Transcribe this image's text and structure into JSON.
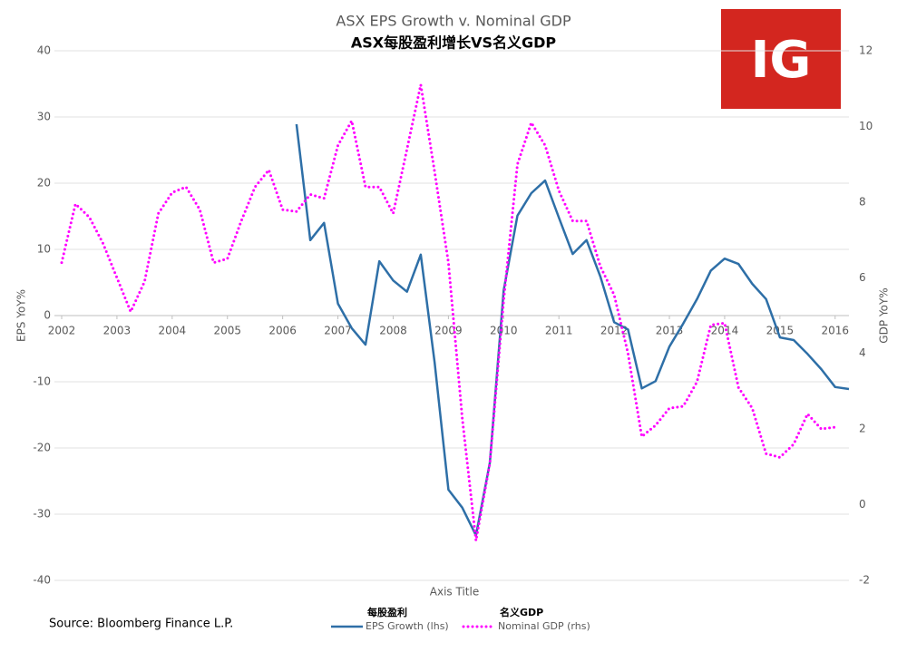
{
  "chart_data": {
    "type": "line",
    "title": "ASX EPS Growth v. Nominal GDP",
    "subtitle": "ASX每股盈利增长VS名义GDP",
    "logo": "IG",
    "source": "Source: Bloomberg Finance L.P.",
    "xlabel": "Axis Title",
    "ylabel": "EPS YoY%",
    "y2label": "GDP YoY%",
    "x": [
      2002,
      2002.25,
      2002.5,
      2002.75,
      2003,
      2003.25,
      2003.5,
      2003.75,
      2004,
      2004.25,
      2004.5,
      2004.75,
      2005,
      2005.25,
      2005.5,
      2005.75,
      2006,
      2006.25,
      2006.5,
      2006.75,
      2007,
      2007.25,
      2007.5,
      2007.75,
      2008,
      2008.25,
      2008.5,
      2008.75,
      2009,
      2009.25,
      2009.5,
      2009.75,
      2010,
      2010.25,
      2010.5,
      2010.75,
      2011,
      2011.25,
      2011.5,
      2011.75,
      2012,
      2012.25,
      2012.5,
      2012.75,
      2013,
      2013.25,
      2013.5,
      2013.75,
      2014,
      2014.25,
      2014.5,
      2014.75,
      2015,
      2015.25,
      2015.5,
      2015.75,
      2016,
      2016.25
    ],
    "xlim": [
      2002,
      2016.25
    ],
    "xticks": [
      2002,
      2003,
      2004,
      2005,
      2006,
      2007,
      2008,
      2009,
      2010,
      2011,
      2012,
      2013,
      2014,
      2015,
      2016
    ],
    "ylim": [
      -40,
      40
    ],
    "yticks": [
      -40,
      -30,
      -20,
      -10,
      0,
      10,
      20,
      30,
      40
    ],
    "y2lim": [
      -2,
      12
    ],
    "y2ticks": [
      -2,
      0,
      2,
      4,
      6,
      8,
      10,
      12
    ],
    "grid": true,
    "series": [
      {
        "name": "EPS Growth (lhs)",
        "label_cn": "每股盈利",
        "color": "#2e6fa7",
        "style": "solid",
        "values": [
          null,
          null,
          null,
          null,
          null,
          null,
          null,
          null,
          null,
          null,
          null,
          null,
          null,
          null,
          null,
          null,
          null,
          28.9,
          11.4,
          14.0,
          1.8,
          -1.9,
          -4.4,
          8.2,
          5.3,
          3.6,
          9.2,
          -7.1,
          -26.3,
          -29,
          -33.2,
          -22.2,
          3.8,
          15.1,
          18.5,
          20.4,
          14.8,
          9.3,
          11.4,
          5.9,
          -1.0,
          -2.1,
          -11.0,
          -9.9,
          -4.7,
          -1.2,
          2.5,
          6.8,
          8.6,
          7.8,
          4.8,
          2.5,
          -3.3,
          -3.7,
          -5.8,
          -8.1,
          -10.8,
          -11.1
        ]
      },
      {
        "name": "Nominal GDP (rhs)",
        "label_cn": "名义GDP",
        "color": "#ff00ff",
        "style": "dotted",
        "axis": "y2",
        "values": [
          6.4,
          7.95,
          7.6,
          6.9,
          6.0,
          5.1,
          5.9,
          7.7,
          8.25,
          8.4,
          7.8,
          6.4,
          6.5,
          7.5,
          8.4,
          8.85,
          7.8,
          7.75,
          8.2,
          8.1,
          9.5,
          10.15,
          8.4,
          8.4,
          7.7,
          9.4,
          11.1,
          8.8,
          6.4,
          2.3,
          -0.95,
          1.1,
          5.4,
          9.0,
          10.1,
          9.5,
          8.3,
          7.5,
          7.5,
          6.3,
          5.55,
          4.0,
          1.8,
          2.1,
          2.55,
          2.6,
          3.25,
          4.75,
          4.8,
          3.1,
          2.55,
          1.35,
          1.25,
          1.6,
          2.4,
          2.0,
          2.05,
          null
        ]
      }
    ]
  }
}
